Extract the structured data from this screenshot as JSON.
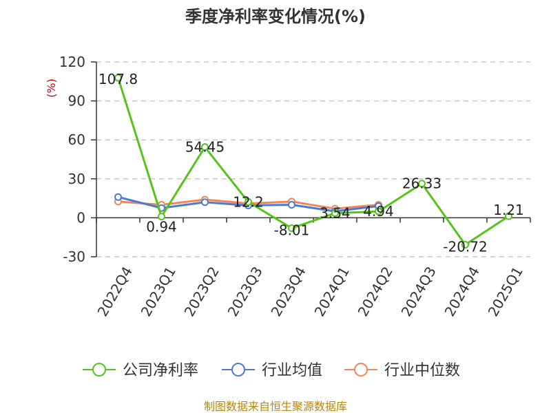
{
  "chart_data": {
    "type": "line",
    "title": "季度净利率变化情况(%)",
    "unit_label": "(%)",
    "categories": [
      "2022Q4",
      "2023Q1",
      "2023Q2",
      "2023Q3",
      "2023Q4",
      "2024Q1",
      "2024Q2",
      "2024Q3",
      "2024Q4",
      "2025Q1"
    ],
    "ylim": [
      -30,
      120
    ],
    "yticks": [
      -30,
      0,
      30,
      60,
      90,
      120
    ],
    "grid": true,
    "legend_position": "bottom",
    "series": [
      {
        "name": "公司净利率",
        "color": "#52c41a",
        "values": [
          107.8,
          0.94,
          54.45,
          12.2,
          -8.01,
          3.54,
          4.94,
          26.33,
          -20.72,
          1.21
        ],
        "labels": [
          "107.8",
          "0.94",
          "54.45",
          "12.2",
          "-8.01",
          "3.54",
          "4.94",
          "26.33",
          "-20.72",
          "1.21"
        ]
      },
      {
        "name": "行业均值",
        "color": "#4a7bd4",
        "values": [
          16,
          7.5,
          12,
          9.5,
          10,
          5,
          9,
          null,
          null,
          null
        ]
      },
      {
        "name": "行业中位数",
        "color": "#f0875a",
        "values": [
          12.5,
          10,
          14,
          11,
          12.5,
          7,
          10,
          null,
          null,
          null
        ]
      }
    ]
  },
  "source_text": "制图数据来自恒生聚源数据库"
}
